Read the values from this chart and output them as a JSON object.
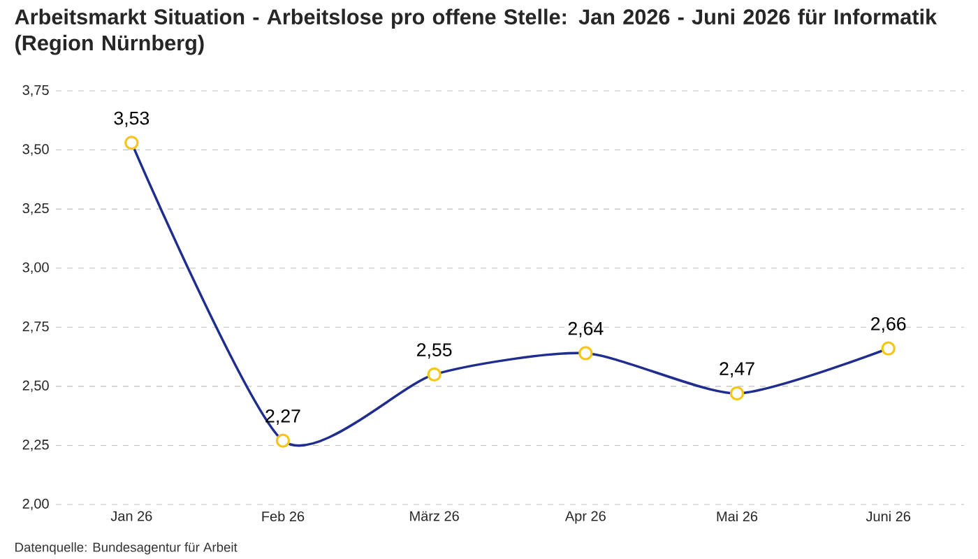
{
  "chart_data": {
    "type": "line",
    "title": "Arbeitsmarkt Situation - Arbeitslose pro offene Stelle: Jan 2026 - Juni 2026 für Informatik (Region Nürnberg)",
    "categories": [
      "Jan 26",
      "Feb 26",
      "März 26",
      "Apr 26",
      "Mai 26",
      "Juni 26"
    ],
    "series": [
      {
        "color": "#1f2d8f",
        "colors": [
          "#f5c518",
          "#f5c518",
          "#f5c518",
          "#f5c518",
          "#f5c518",
          "#f5c518"
        ],
        "values": [
          3.53,
          2.27,
          2.55,
          2.64,
          2.47,
          2.66
        ],
        "value_labels": [
          "3,53",
          "2,27",
          "2,55",
          "2,64",
          "2,47",
          "2,66"
        ]
      }
    ],
    "ylim": [
      2.0,
      3.75
    ],
    "yticks": [
      {
        "value": 2.0,
        "label": "2,00"
      },
      {
        "value": 2.25,
        "label": "2,25"
      },
      {
        "value": 2.5,
        "label": "2,50"
      },
      {
        "value": 2.75,
        "label": "2,75"
      },
      {
        "value": 3.0,
        "label": "3,00"
      },
      {
        "value": 3.25,
        "label": "3,25"
      },
      {
        "value": 3.5,
        "label": "3,50"
      },
      {
        "value": 3.75,
        "label": "3,75"
      }
    ],
    "grid": "y",
    "marker": "circle",
    "line_style": "solid",
    "annotations": [
      "Datenquelle: Bundesagentur für Arbeit"
    ]
  }
}
